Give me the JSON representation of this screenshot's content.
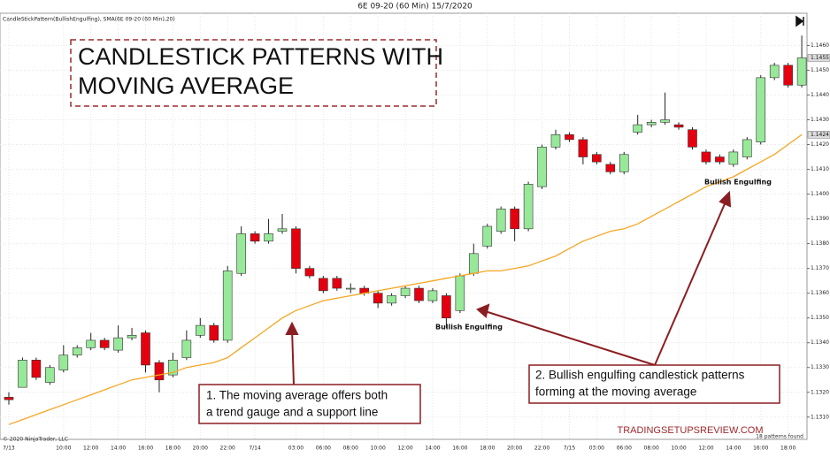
{
  "chart_data": {
    "type": "candlestick",
    "header": "6E 09-20 (60 Min)  15/7/2020",
    "indicator_label": "CandleStickPattern(BullishEngulfing), SMA(6E 09-20 (60 Min),20)",
    "title_lines": [
      "CANDLESTICK PATTERNS WITH",
      "MOVING AVERAGE"
    ],
    "categories": [
      "7/13",
      null,
      null,
      null,
      "10:00",
      null,
      "12:00",
      null,
      "14:00",
      null,
      "16:00",
      null,
      "18:00",
      null,
      "20:00",
      null,
      "22:00",
      null,
      "7/14",
      null,
      null,
      "03:00",
      null,
      "06:00",
      null,
      "08:00",
      null,
      "10:00",
      null,
      "12:00",
      null,
      "14:00",
      null,
      "16:00",
      null,
      "18:00",
      null,
      "20:00",
      null,
      "22:00",
      null,
      "7/15",
      null,
      "03:00",
      null,
      "06:00",
      null,
      "08:00",
      null,
      "10:00",
      null,
      "12:00",
      null,
      "14:00",
      null,
      "16:00",
      null,
      "18:00",
      null
    ],
    "open": [
      1.1318,
      1.1322,
      1.1333,
      1.1324,
      1.1329,
      1.1335,
      1.1338,
      1.1341,
      1.1337,
      1.1342,
      1.1344,
      1.1332,
      1.1327,
      1.1334,
      1.1343,
      1.1347,
      1.1341,
      1.1368,
      1.1384,
      1.1381,
      1.1385,
      1.1386,
      1.137,
      1.1366,
      1.1366,
      1.1362,
      1.1362,
      1.136,
      1.1356,
      1.1359,
      1.1362,
      1.1357,
      1.1359,
      1.1353,
      1.1368,
      1.1379,
      1.1385,
      1.1394,
      1.1386,
      1.1403,
      1.1419,
      1.1424,
      1.1422,
      1.1416,
      1.1412,
      1.1409,
      1.1425,
      1.1428,
      1.1429,
      1.1428,
      1.1426,
      1.1417,
      1.1415,
      1.1412,
      1.1415,
      1.1421,
      1.1447,
      1.1452,
      1.1444
    ],
    "high": [
      1.132,
      1.1334,
      1.1334,
      1.1331,
      1.1339,
      1.1339,
      1.1344,
      1.1342,
      1.1347,
      1.1346,
      1.1345,
      1.1333,
      1.1336,
      1.1345,
      1.135,
      1.1348,
      1.1371,
      1.1387,
      1.1385,
      1.139,
      1.1392,
      1.1387,
      1.1371,
      1.1367,
      1.1367,
      1.1364,
      1.1363,
      1.1361,
      1.136,
      1.1363,
      1.1363,
      1.1362,
      1.136,
      1.1368,
      1.138,
      1.1388,
      1.1395,
      1.1395,
      1.1405,
      1.142,
      1.1426,
      1.1425,
      1.1423,
      1.1417,
      1.1413,
      1.1417,
      1.1432,
      1.143,
      1.1441,
      1.1429,
      1.1427,
      1.1418,
      1.1416,
      1.1418,
      1.1423,
      1.1448,
      1.1453,
      1.1453,
      1.1464
    ],
    "low": [
      1.1315,
      1.1322,
      1.1325,
      1.1323,
      1.1328,
      1.1334,
      1.1337,
      1.1337,
      1.1336,
      1.1341,
      1.1328,
      1.132,
      1.1326,
      1.1333,
      1.1342,
      1.134,
      1.134,
      1.1367,
      1.138,
      1.138,
      1.1384,
      1.1368,
      1.1366,
      1.136,
      1.1361,
      1.136,
      1.1359,
      1.1354,
      1.1355,
      1.1358,
      1.1356,
      1.1356,
      1.1346,
      1.1352,
      1.1367,
      1.1378,
      1.1384,
      1.1381,
      1.1385,
      1.1402,
      1.1418,
      1.1421,
      1.1412,
      1.1412,
      1.1408,
      1.1408,
      1.1424,
      1.1427,
      1.1428,
      1.1426,
      1.1418,
      1.1412,
      1.1412,
      1.1411,
      1.1414,
      1.142,
      1.1446,
      1.1443,
      1.1443
    ],
    "close": [
      1.1317,
      1.1333,
      1.1326,
      1.133,
      1.1335,
      1.1338,
      1.1341,
      1.1338,
      1.1342,
      1.1343,
      1.1331,
      1.1325,
      1.1333,
      1.1341,
      1.1347,
      1.1341,
      1.1369,
      1.1384,
      1.1381,
      1.1384,
      1.1386,
      1.137,
      1.1367,
      1.1361,
      1.1362,
      1.1362,
      1.136,
      1.1356,
      1.1359,
      1.1362,
      1.1357,
      1.1361,
      1.135,
      1.1367,
      1.1376,
      1.1387,
      1.1394,
      1.1386,
      1.1404,
      1.1419,
      1.1424,
      1.1422,
      1.1415,
      1.1413,
      1.1409,
      1.1416,
      1.1428,
      1.1429,
      1.143,
      1.1427,
      1.1419,
      1.1413,
      1.1413,
      1.1417,
      1.1422,
      1.1447,
      1.1452,
      1.1444,
      1.1455
    ],
    "up_color": "#98e89a",
    "down_color": "#e4000f",
    "sma": {
      "color": "#f5a623",
      "values": [
        1.1307,
        1.1309,
        1.1311,
        1.1313,
        1.1315,
        1.1317,
        1.1319,
        1.1321,
        1.1323,
        1.1325,
        1.1326,
        1.1327,
        1.1328,
        1.133,
        1.1331,
        1.1332,
        1.1334,
        1.1338,
        1.1342,
        1.1346,
        1.135,
        1.1353,
        1.1355,
        1.1357,
        1.1358,
        1.1359,
        1.136,
        1.1361,
        1.1362,
        1.1363,
        1.1364,
        1.1365,
        1.1366,
        1.1367,
        1.1368,
        1.1369,
        1.1369,
        1.137,
        1.1371,
        1.1373,
        1.1375,
        1.1378,
        1.1381,
        1.1383,
        1.1385,
        1.1386,
        1.1388,
        1.1391,
        1.1394,
        1.1397,
        1.14,
        1.1403,
        1.1405,
        1.1407,
        1.141,
        1.1413,
        1.1416,
        1.142,
        1.1424
      ]
    },
    "ylim": [
      1.1301,
      1.1473
    ],
    "yticks": [
      {
        "value": 1.131,
        "label": "1.1310"
      },
      {
        "value": 1.132,
        "label": "1.1320"
      },
      {
        "value": 1.133,
        "label": "1.1330"
      },
      {
        "value": 1.134,
        "label": "1.1340"
      },
      {
        "value": 1.135,
        "label": "1.1350"
      },
      {
        "value": 1.136,
        "label": "1.1360"
      },
      {
        "value": 1.137,
        "label": "1.1370"
      },
      {
        "value": 1.138,
        "label": "1.1380"
      },
      {
        "value": 1.139,
        "label": "1.1390"
      },
      {
        "value": 1.14,
        "label": "1.1400"
      },
      {
        "value": 1.141,
        "label": "1.1410"
      },
      {
        "value": 1.142,
        "label": "1.1420"
      },
      {
        "value": 1.143,
        "label": "1.1430"
      },
      {
        "value": 1.144,
        "label": "1.1440"
      },
      {
        "value": 1.145,
        "label": "1.1450"
      },
      {
        "value": 1.146,
        "label": "1.1460"
      }
    ],
    "price_tags": [
      {
        "value": 1.1455,
        "label": "1.1455"
      },
      {
        "value": 1.1424,
        "label": "1.1424"
      }
    ],
    "grid": true,
    "pattern_labels": [
      "Bullish Engulfing",
      "Bullish Engulfing"
    ],
    "note_1_lines": [
      "1. The moving average offers both",
      "a trend gauge and a support line"
    ],
    "note_2_lines": [
      "2. Bullish engulfing candlestick patterns",
      "forming at the moving average"
    ],
    "watermark": "TRADINGSETUPSREVIEW.COM",
    "copyright": "© 2020 NinjaTrader, LLC",
    "pattern_count": "18 patterns found"
  }
}
